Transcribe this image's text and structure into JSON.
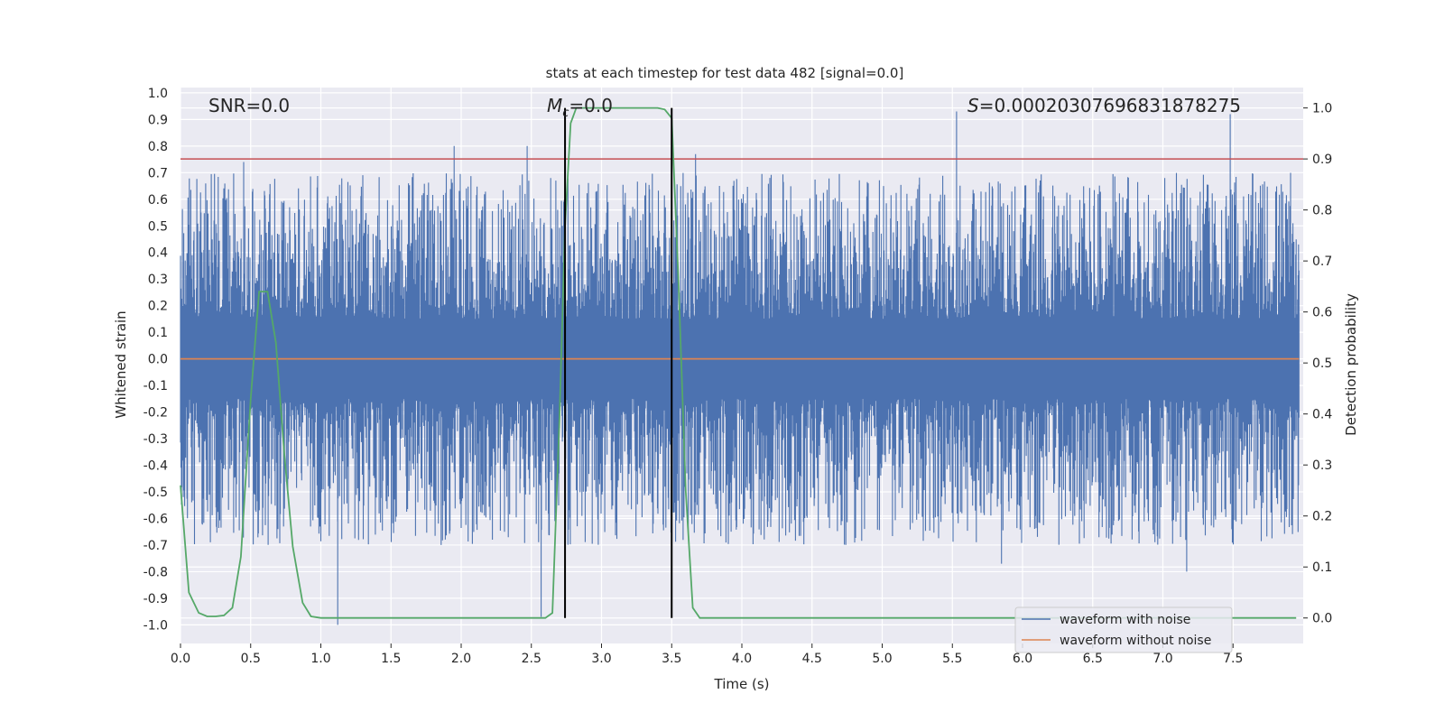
{
  "chart_data": {
    "type": "line",
    "title": "stats at each timestep for test data 482 [signal=0.0]",
    "xlabel": "Time (s)",
    "ylabel_left": "Whitened strain",
    "ylabel_right": "Detection probability",
    "xlim": [
      0.0,
      8.0
    ],
    "ylim_left": [
      -1.07,
      1.02
    ],
    "ylim_right": [
      -0.05,
      1.04
    ],
    "xticks": [
      "0.0",
      "0.5",
      "1.0",
      "1.5",
      "2.0",
      "2.5",
      "3.0",
      "3.5",
      "4.0",
      "4.5",
      "5.0",
      "5.5",
      "6.0",
      "6.5",
      "7.0",
      "7.5"
    ],
    "yticks_left": [
      "1.0",
      "0.9",
      "0.8",
      "0.7",
      "0.6",
      "0.5",
      "0.4",
      "0.3",
      "0.2",
      "0.1",
      "0.0",
      "-0.1",
      "-0.2",
      "-0.3",
      "-0.4",
      "-0.5",
      "-0.6",
      "-0.7",
      "-0.8",
      "-0.9",
      "-1.0"
    ],
    "yticks_right": [
      "1.0",
      "0.9",
      "0.8",
      "0.7",
      "0.6",
      "0.5",
      "0.4",
      "0.3",
      "0.2",
      "0.1",
      "0.0"
    ],
    "grid": true,
    "legend_position": "bottom-right",
    "annotations": {
      "snr": "SNR=0.0",
      "mc_symbol": "M",
      "mc_sub": "c",
      "mc_value": "=0.0",
      "s_symbol": "S",
      "s_value": "=0.00020307696831878275"
    },
    "series": [
      {
        "name": "waveform with noise",
        "axis": "left",
        "color": "#4c72b0",
        "style": "noise",
        "amplitude_range": [
          -1.0,
          0.93
        ],
        "peaks": [
          [
            0.45,
            0.74
          ],
          [
            1.95,
            0.8
          ],
          [
            2.47,
            0.8
          ],
          [
            3.67,
            0.77
          ],
          [
            5.53,
            0.93
          ],
          [
            7.48,
            0.92
          ],
          [
            1.12,
            -1.0
          ],
          [
            2.57,
            -0.97
          ],
          [
            5.85,
            -0.77
          ],
          [
            7.17,
            -0.8
          ]
        ]
      },
      {
        "name": "waveform without noise",
        "axis": "left",
        "color": "#dd8452",
        "x": [
          0.0,
          8.0
        ],
        "y": [
          0.0,
          0.0
        ]
      },
      {
        "name": "",
        "axis": "right",
        "color": "#55a868",
        "x": [
          0.0,
          0.06,
          0.13,
          0.19,
          0.25,
          0.31,
          0.37,
          0.43,
          0.5,
          0.56,
          0.62,
          0.68,
          0.74,
          0.8,
          0.87,
          0.93,
          1.0,
          2.6,
          2.65,
          2.7,
          2.74,
          2.78,
          2.82,
          3.4,
          3.45,
          3.5,
          3.55,
          3.6,
          3.65,
          3.7,
          7.95
        ],
        "y": [
          0.26,
          0.05,
          0.01,
          0.003,
          0.003,
          0.005,
          0.02,
          0.12,
          0.43,
          0.64,
          0.64,
          0.54,
          0.32,
          0.14,
          0.03,
          0.003,
          0.0,
          0.0,
          0.01,
          0.39,
          0.77,
          0.97,
          1.0,
          1.0,
          0.997,
          0.98,
          0.65,
          0.25,
          0.02,
          0.0,
          0.0
        ]
      }
    ],
    "hlines": [
      {
        "axis": "right",
        "y": 0.9,
        "color": "#c44e52"
      }
    ],
    "vlines": [
      {
        "x": 2.74,
        "y_range_right": [
          0.0,
          1.0
        ],
        "color": "#000000"
      },
      {
        "x": 3.5,
        "y_range_right": [
          0.0,
          1.0
        ],
        "color": "#000000"
      }
    ]
  }
}
